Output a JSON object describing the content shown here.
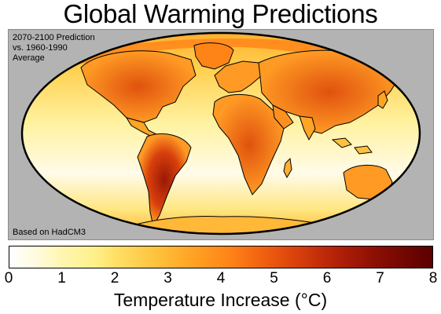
{
  "title": "Global Warming Predictions",
  "map": {
    "prediction_lines": [
      "2070-2100 Prediction",
      "vs. 1960-1990",
      "Average"
    ],
    "source_note": "Based on HadCM3",
    "background_color": "#b3b3b3",
    "ocean_color": "#fff3b8",
    "land_color": "#ff9a24"
  },
  "colorbar": {
    "min": 0,
    "max": 8,
    "ticks": [
      "0",
      "1",
      "2",
      "3",
      "4",
      "5",
      "6",
      "7",
      "8"
    ],
    "label": "Temperature Increase (°C)",
    "colors": [
      "#ffffff",
      "#fff6b0",
      "#ffe066",
      "#ffa424",
      "#ff8418",
      "#d8400c",
      "#b42208",
      "#8a0e04",
      "#5a0000"
    ]
  }
}
